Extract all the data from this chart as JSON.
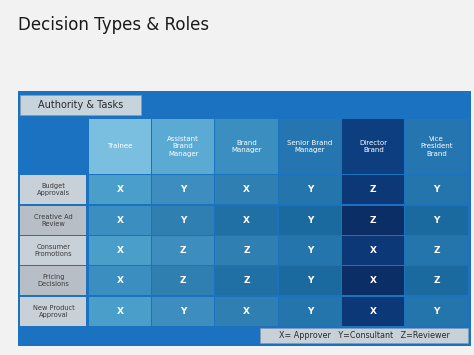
{
  "title": "Decision Types & Roles",
  "subtitle_box": "Authority & Tasks",
  "col_headers": [
    "Trainee",
    "Assistant\nBrand\nManager",
    "Brand\nManager",
    "Senior Brand\nManager",
    "Director\nBrand",
    "Vice\nPresident\nBrand"
  ],
  "row_headers": [
    "Budget\nApprovals",
    "Creative Ad\nReview",
    "Consumer\nPromotions",
    "Pricing\nDecisions",
    "New Product\nApproval"
  ],
  "matrix": [
    [
      "X",
      "Y",
      "X",
      "Y",
      "Z",
      "Y"
    ],
    [
      "X",
      "Y",
      "X",
      "Y",
      "Z",
      "Y"
    ],
    [
      "X",
      "Z",
      "Z",
      "Y",
      "X",
      "Z"
    ],
    [
      "X",
      "Z",
      "Z",
      "Y",
      "X",
      "Z"
    ],
    [
      "X",
      "Y",
      "X",
      "Y",
      "X",
      "Y"
    ]
  ],
  "legend": "X= Approver   Y=Consultant   Z=Reviewer",
  "bg_color": "#1A72C0",
  "title_color": "#1a1a1a",
  "fig_bg": "#f2f2f2",
  "col_colors": [
    "#7BBFE0",
    "#5AAAD4",
    "#3A8FC0",
    "#2575B0",
    "#0D3E80",
    "#2575B0"
  ],
  "cell_colors_by_col": [
    "#4A9FD4",
    "#3A8FC0",
    "#2575B0",
    "#2070B0",
    "#0D3E80",
    "#2070B0"
  ],
  "row_header_colors": [
    "#C8D0D8",
    "#B8BEC6",
    "#C8D0D8",
    "#B8BEC6",
    "#C8D0D8"
  ],
  "row_header_text": "#3a3a3a",
  "legend_bg": "#C8D0D8",
  "auth_bg": "#C8D4DC",
  "white": "#FFFFFF"
}
